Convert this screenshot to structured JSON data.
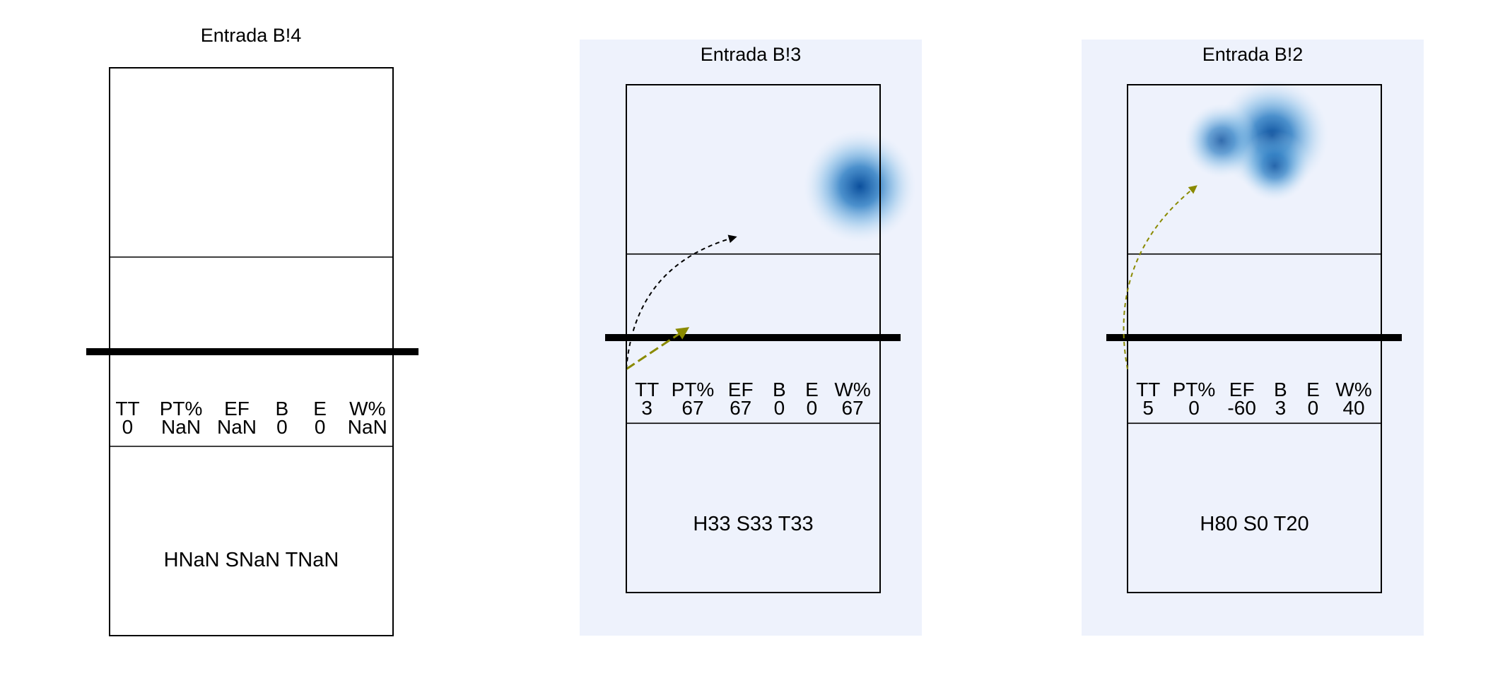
{
  "colors": {
    "panel_background": "#eef2fc",
    "heat_core": "#0b4f9c",
    "heat_mid": "#3a8fd0",
    "arrow_olive": "#8a8a00",
    "arrow_black": "#000000",
    "court_line": "#000000"
  },
  "chart_data": [
    {
      "type": "heatmap",
      "title": "Entrada B!4",
      "highlighted": false,
      "stats": {
        "headers": [
          "TT",
          "PT%",
          "EF",
          "B",
          "E",
          "W%"
        ],
        "values": [
          "0",
          "NaN",
          "NaN",
          "0",
          "0",
          "NaN"
        ]
      },
      "zone_label": "HNaN SNaN TNaN",
      "heat_blobs": [],
      "arrows": []
    },
    {
      "type": "heatmap",
      "title": "Entrada B!3",
      "highlighted": true,
      "stats": {
        "headers": [
          "TT",
          "PT%",
          "EF",
          "B",
          "E",
          "W%"
        ],
        "values": [
          "3",
          "67",
          "67",
          "0",
          "0",
          "67"
        ]
      },
      "zone_label": "H33 S33 T33",
      "heat_blobs": [
        {
          "x": 0.92,
          "y": 0.8,
          "intensity": 1.0
        }
      ],
      "arrows": [
        {
          "from": [
            0.0,
            0.44
          ],
          "to": [
            0.24,
            0.52
          ],
          "color": "olive",
          "curve": 0.0
        },
        {
          "from": [
            0.0,
            0.44
          ],
          "to": [
            0.43,
            0.7
          ],
          "color": "black",
          "curve": -0.35
        }
      ]
    },
    {
      "type": "heatmap",
      "title": "Entrada B!2",
      "highlighted": true,
      "stats": {
        "headers": [
          "TT",
          "PT%",
          "EF",
          "B",
          "E",
          "W%"
        ],
        "values": [
          "5",
          "0",
          "-60",
          "3",
          "0",
          "40"
        ]
      },
      "zone_label": "H80 S0 T20",
      "heat_blobs": [
        {
          "x": 0.57,
          "y": 0.9,
          "intensity": 1.0
        },
        {
          "x": 0.37,
          "y": 0.89,
          "intensity": 0.55
        },
        {
          "x": 0.58,
          "y": 0.84,
          "intensity": 0.5
        }
      ],
      "arrows": [
        {
          "from": [
            0.0,
            0.44
          ],
          "to": [
            0.27,
            0.8
          ],
          "color": "olive",
          "curve": -0.3
        }
      ]
    }
  ]
}
